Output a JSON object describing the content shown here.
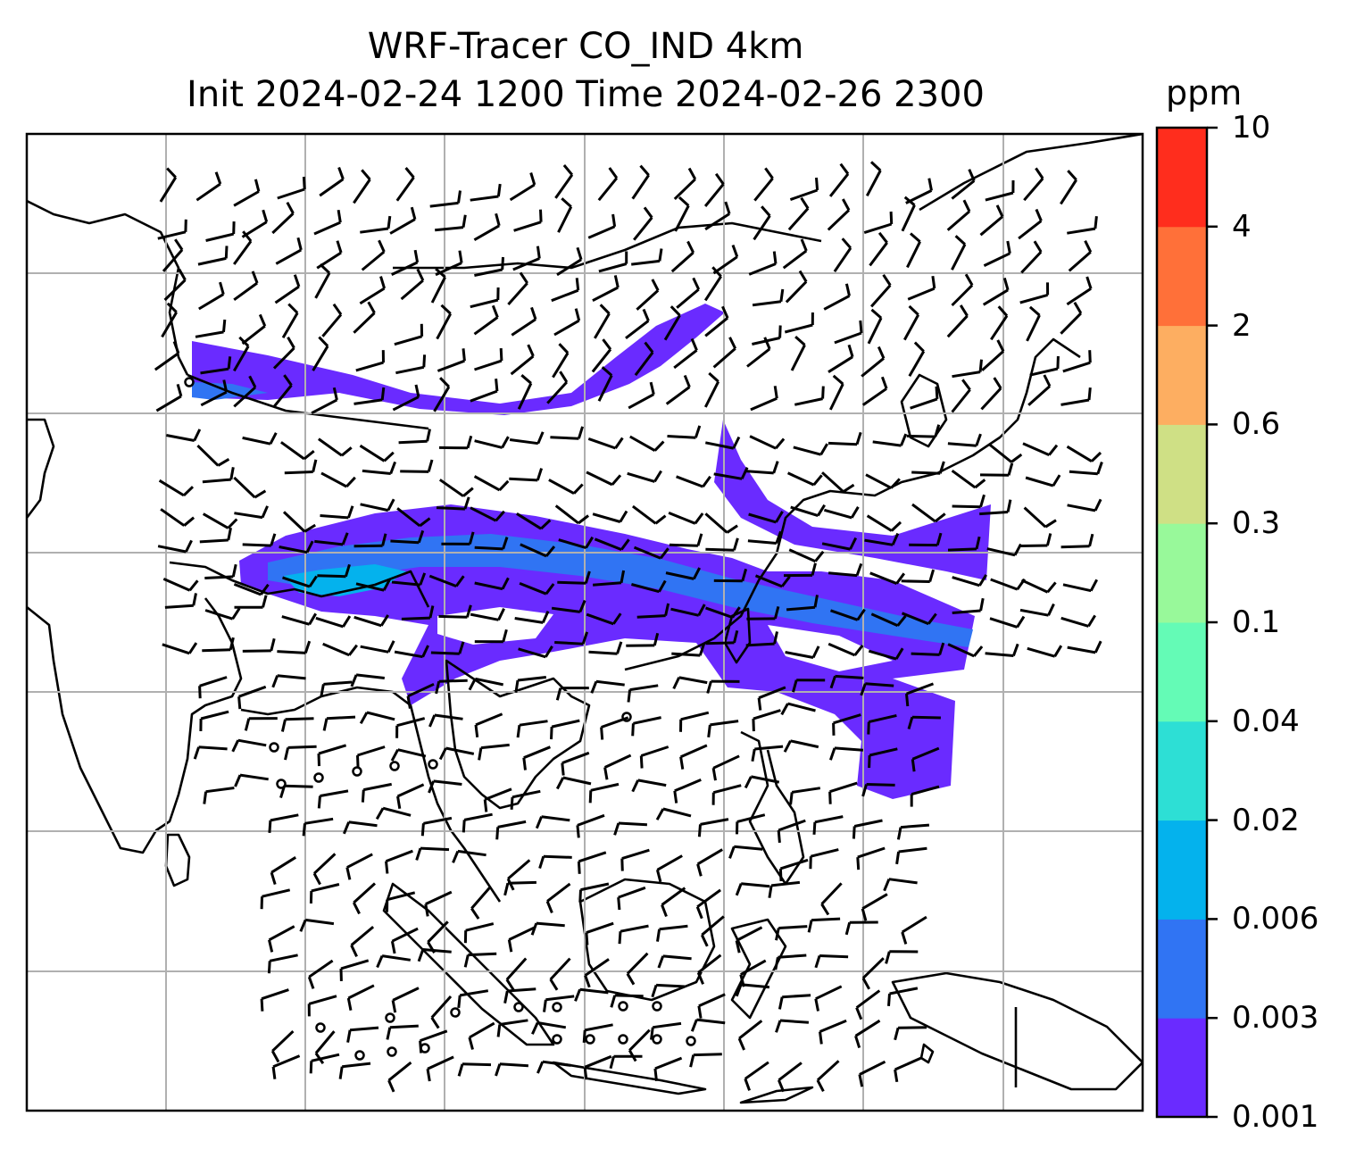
{
  "title": {
    "line1": "WRF-Tracer CO_IND 4km",
    "line2": "Init 2024-02-24 1200 Time 2024-02-26 2300"
  },
  "colorbar": {
    "unit": "ppm",
    "levels": [
      "0.001",
      "0.003",
      "0.006",
      "0.02",
      "0.04",
      "0.1",
      "0.3",
      "0.6",
      "2",
      "4",
      "10"
    ],
    "colors": [
      "#6a2bff",
      "#3074f3",
      "#04b2ed",
      "#2ddfd5",
      "#64fbb6",
      "#98f99a",
      "#cfe085",
      "#fdae61",
      "#ff7039",
      "#ff2d1d"
    ]
  },
  "map": {
    "tracer": "CO_IND",
    "resolution": "4km",
    "gridlines": true,
    "overlays": [
      "coastlines",
      "country-borders",
      "wind-barbs",
      "calm-wind-circles"
    ]
  }
}
